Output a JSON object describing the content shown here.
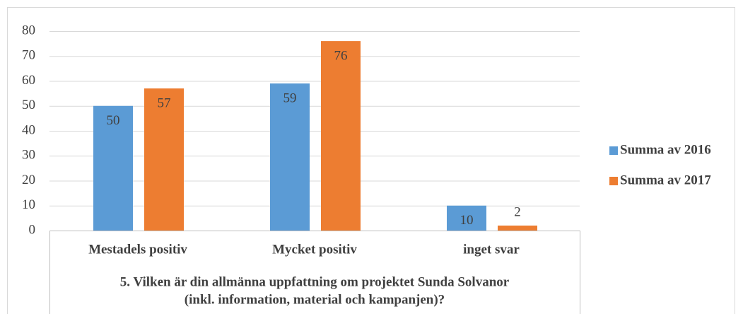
{
  "chart_data": {
    "type": "bar",
    "xlabel": [
      "5. Vilken är din allmänna uppfattning om projektet Sunda Solvanor",
      "(inkl. information, material och kampanjen)?"
    ],
    "categories": [
      "Mestadels positiv",
      "Mycket positiv",
      "inget svar"
    ],
    "series": [
      {
        "name": "Summa av 2016",
        "color": "#5b9bd5",
        "values": [
          50,
          59,
          10
        ]
      },
      {
        "name": "Summa av 2017",
        "color": "#ed7d31",
        "values": [
          57,
          76,
          2
        ]
      }
    ],
    "ylim": [
      0,
      80
    ],
    "yticks": [
      0,
      10,
      20,
      30,
      40,
      50,
      60,
      70,
      80
    ],
    "grid": true,
    "legend": "right"
  }
}
